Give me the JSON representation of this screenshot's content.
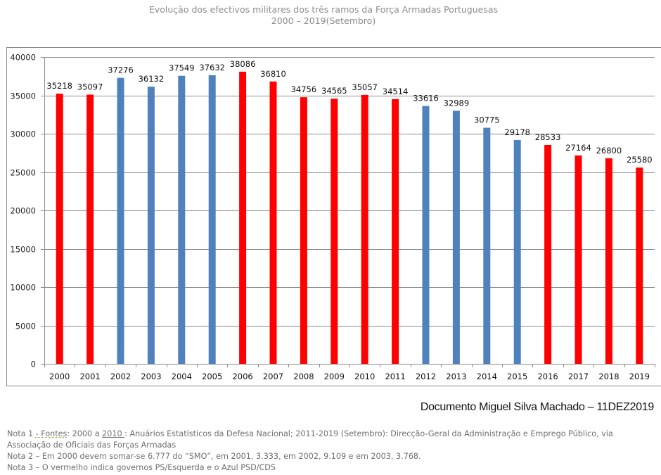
{
  "chart_data": {
    "type": "bar",
    "title": "Evolução dos efectivos militares dos três ramos da Força Armadas Portuguesas",
    "subtitle": "2000 – 2019(Setembro)",
    "xlabel": "",
    "ylabel": "",
    "ylim": [
      0,
      40000
    ],
    "yticks": [
      0,
      5000,
      10000,
      15000,
      20000,
      25000,
      30000,
      35000,
      40000
    ],
    "grid": true,
    "legend": "none",
    "categories": [
      "2000",
      "2001",
      "2002",
      "2003",
      "2004",
      "2005",
      "2006",
      "2007",
      "2008",
      "2009",
      "2010",
      "2011",
      "2012",
      "2013",
      "2014",
      "2015",
      "2016",
      "2017",
      "2018",
      "2019"
    ],
    "values": [
      35218,
      35097,
      37276,
      36132,
      37549,
      37632,
      38086,
      36810,
      34756,
      34565,
      35057,
      34514,
      33616,
      32989,
      30775,
      29178,
      28533,
      27164,
      26800,
      25580
    ],
    "bar_groups": [
      "PS",
      "PS",
      "PSD",
      "PSD",
      "PSD",
      "PSD",
      "PS",
      "PS",
      "PS",
      "PS",
      "PS",
      "PS",
      "PSD",
      "PSD",
      "PSD",
      "PSD",
      "PS",
      "PS",
      "PS",
      "PS"
    ],
    "data_labels": [
      "35218",
      "35097",
      "37276",
      "36132",
      "37549",
      "37632",
      "38086",
      "36810",
      "34756",
      "34565",
      "35057",
      "34514",
      "33616",
      "32989",
      "30775",
      "29178",
      "28533",
      "27164",
      "26800",
      "25580"
    ],
    "colors": {
      "PS": "#ff0000",
      "PSD": "#4f81bd"
    }
  },
  "author_line": "Documento Miguel Silva Machado – 11DEZ2019",
  "notes": {
    "n1_prefix": "Nota 1 ",
    "n1_dash": "- ",
    "n1_fontes": "Fontes",
    "n1_a": ": 2000 a ",
    "n1_2010": "2010 ",
    "n1_rest": ": Anuários Estatísticos da Defesa Nacional; 2011-2019 (Setembro): Direcção-Geral da Administração e Emprego Público, via",
    "n1_line2": "Associação de Oficiais das Forças Armadas",
    "n2": "Nota 2 – Em 2000 devem somar-se 6.777 do “SMO”, em 2001, 3.333, em 2002, 9.109 e em 2003, 3.768.",
    "n3": "Nota 3 – O vermelho indica governos PS/Esquerda e o Azul PSD/CDS"
  }
}
